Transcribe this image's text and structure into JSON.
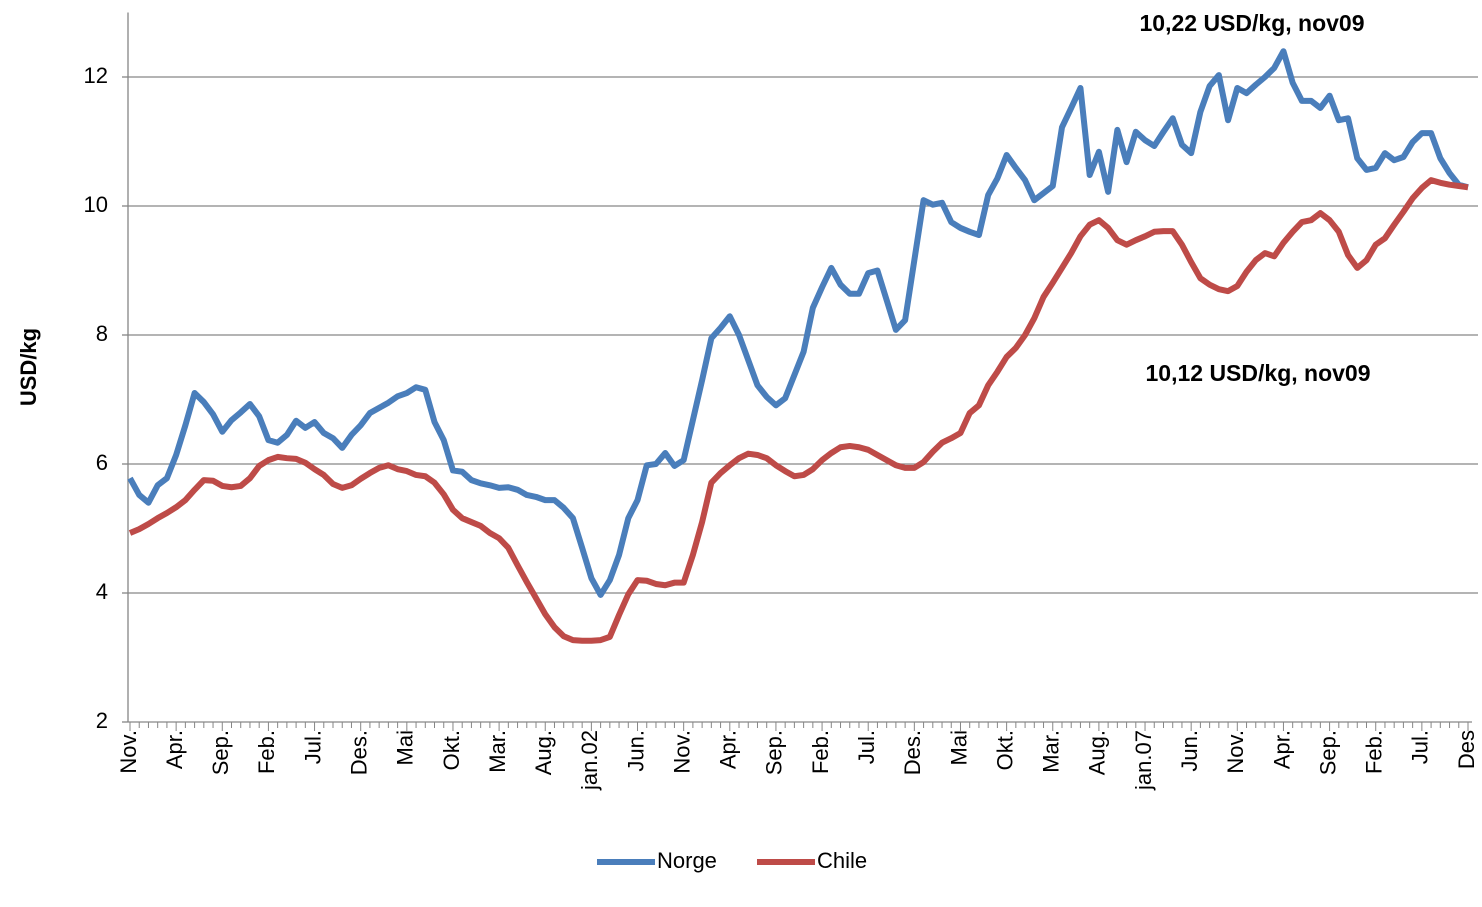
{
  "chart_data": {
    "type": "line",
    "y_label": "USD/kg",
    "annotations": [
      "10,22 USD/kg, nov09",
      "10,12 USD/kg, nov09"
    ],
    "categories": [
      "Nov.",
      null,
      null,
      null,
      null,
      "Apr.",
      null,
      null,
      null,
      null,
      "Sep.",
      null,
      null,
      null,
      null,
      "Feb.",
      null,
      null,
      null,
      null,
      "Jul.",
      null,
      null,
      null,
      null,
      "Des.",
      null,
      null,
      null,
      null,
      "Mai",
      null,
      null,
      null,
      null,
      "Okt.",
      null,
      null,
      null,
      null,
      "Mar.",
      null,
      null,
      null,
      null,
      "Aug.",
      null,
      null,
      null,
      null,
      "jan.02",
      null,
      null,
      null,
      null,
      "Jun.",
      null,
      null,
      null,
      null,
      "Nov.",
      null,
      null,
      null,
      null,
      "Apr.",
      null,
      null,
      null,
      null,
      "Sep.",
      null,
      null,
      null,
      null,
      "Feb.",
      null,
      null,
      null,
      null,
      "Jul.",
      null,
      null,
      null,
      null,
      "Des.",
      null,
      null,
      null,
      null,
      "Mai",
      null,
      null,
      null,
      null,
      "Okt.",
      null,
      null,
      null,
      null,
      "Mar.",
      null,
      null,
      null,
      null,
      "Aug.",
      null,
      null,
      null,
      null,
      "jan.07",
      null,
      null,
      null,
      null,
      "Jun.",
      null,
      null,
      null,
      null,
      "Nov.",
      null,
      null,
      null,
      null,
      "Apr.",
      null,
      null,
      null,
      null,
      "Sep.",
      null,
      null,
      null,
      null,
      "Feb.",
      null,
      null,
      null,
      null,
      "Jul.",
      null,
      null,
      null,
      null,
      "Des"
    ],
    "series": [
      {
        "name": "Norge",
        "color": "#4a7ebb",
        "values": [
          5.78,
          5.52,
          5.4,
          5.67,
          5.78,
          6.14,
          6.6,
          7.1,
          6.96,
          6.77,
          6.5,
          6.68,
          6.8,
          6.93,
          6.74,
          6.37,
          6.33,
          6.45,
          6.67,
          6.56,
          6.65,
          6.48,
          6.4,
          6.25,
          6.45,
          6.6,
          6.79,
          6.87,
          6.95,
          7.05,
          7.1,
          7.19,
          7.15,
          6.65,
          6.37,
          5.9,
          5.88,
          5.75,
          5.7,
          5.67,
          5.63,
          5.64,
          5.6,
          5.52,
          5.49,
          5.44,
          5.44,
          5.32,
          5.16,
          4.7,
          4.23,
          3.97,
          4.2,
          4.59,
          5.16,
          5.44,
          5.98,
          6.0,
          6.17,
          5.97,
          6.06,
          6.68,
          7.3,
          7.95,
          8.11,
          8.29,
          8.0,
          7.61,
          7.22,
          7.04,
          6.91,
          7.02,
          7.38,
          7.74,
          8.42,
          8.74,
          9.04,
          8.78,
          8.64,
          8.64,
          8.96,
          9.0,
          8.54,
          8.08,
          8.23,
          9.16,
          10.09,
          10.02,
          10.05,
          9.75,
          9.66,
          9.6,
          9.55,
          10.17,
          10.43,
          10.79,
          10.59,
          10.4,
          10.09,
          10.2,
          10.31,
          11.22,
          11.52,
          11.83,
          10.48,
          10.84,
          10.22,
          11.18,
          10.68,
          11.15,
          11.02,
          10.93,
          11.15,
          11.36,
          10.95,
          10.82,
          11.46,
          11.86,
          12.03,
          11.33,
          11.83,
          11.75,
          11.88,
          12.0,
          12.14,
          12.4,
          11.91,
          11.63,
          11.63,
          11.52,
          11.71,
          11.33,
          11.36,
          10.74,
          10.56,
          10.59,
          10.82,
          10.71,
          10.76,
          10.99,
          11.13,
          11.13,
          10.74,
          10.51,
          10.33,
          10.29
        ]
      },
      {
        "name": "Chile",
        "color": "#be4b48",
        "values": [
          4.93,
          4.99,
          5.07,
          5.16,
          5.24,
          5.33,
          5.44,
          5.6,
          5.75,
          5.74,
          5.66,
          5.64,
          5.66,
          5.78,
          5.97,
          6.06,
          6.11,
          6.09,
          6.08,
          6.02,
          5.92,
          5.83,
          5.69,
          5.63,
          5.67,
          5.77,
          5.86,
          5.94,
          5.98,
          5.92,
          5.89,
          5.83,
          5.81,
          5.71,
          5.53,
          5.29,
          5.16,
          5.1,
          5.04,
          4.93,
          4.85,
          4.7,
          4.43,
          4.17,
          3.92,
          3.67,
          3.47,
          3.33,
          3.27,
          3.26,
          3.26,
          3.27,
          3.32,
          3.66,
          3.98,
          4.2,
          4.19,
          4.14,
          4.12,
          4.16,
          4.16,
          4.59,
          5.1,
          5.71,
          5.86,
          5.98,
          6.09,
          6.16,
          6.14,
          6.09,
          5.98,
          5.89,
          5.81,
          5.83,
          5.92,
          6.06,
          6.17,
          6.26,
          6.28,
          6.26,
          6.22,
          6.14,
          6.06,
          5.98,
          5.94,
          5.94,
          6.03,
          6.19,
          6.33,
          6.4,
          6.48,
          6.79,
          6.91,
          7.22,
          7.43,
          7.66,
          7.8,
          8.0,
          8.26,
          8.59,
          8.81,
          9.04,
          9.27,
          9.53,
          9.71,
          9.78,
          9.66,
          9.47,
          9.4,
          9.47,
          9.53,
          9.6,
          9.61,
          9.61,
          9.4,
          9.13,
          8.88,
          8.78,
          8.71,
          8.68,
          8.76,
          8.98,
          9.16,
          9.27,
          9.22,
          9.43,
          9.6,
          9.75,
          9.78,
          9.89,
          9.78,
          9.6,
          9.24,
          9.04,
          9.16,
          9.4,
          9.5,
          9.71,
          9.91,
          10.12,
          10.28,
          10.4,
          10.36,
          10.33,
          10.31,
          10.29
        ]
      }
    ],
    "ylim": [
      2,
      13
    ],
    "yticks": [
      2,
      4,
      6,
      8,
      10,
      12
    ],
    "grid": true,
    "legend": "bottom"
  }
}
